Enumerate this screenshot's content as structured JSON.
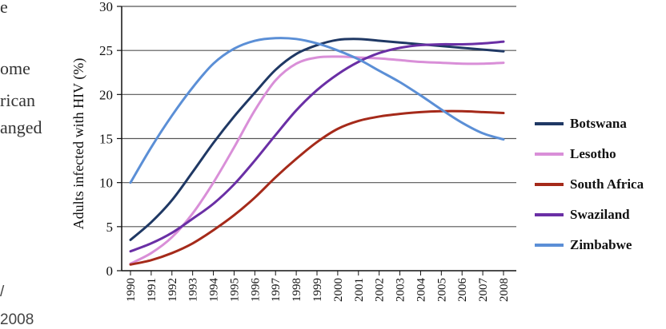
{
  "left_text_fragments": [
    {
      "text": "e",
      "style": "serif"
    },
    {
      "text": "ome",
      "style": "serif"
    },
    {
      "text": "rican",
      "style": "serif"
    },
    {
      "text": "anged",
      "style": "serif"
    },
    {
      "text": "/",
      "style": "sans"
    },
    {
      "text": "2008",
      "style": "sans"
    }
  ],
  "chart_data": {
    "type": "line",
    "ylabel": "Adults infected with HIV (%)",
    "xlabel": "",
    "title": "",
    "ylim": [
      0,
      30
    ],
    "yticks": [
      0,
      5,
      10,
      15,
      20,
      25,
      30
    ],
    "grid": "horizontal",
    "legend_position": "right",
    "x": [
      "1990",
      "1991",
      "1992",
      "1993",
      "1994",
      "1995",
      "1996",
      "1997",
      "1998",
      "1999",
      "2000",
      "2001",
      "2002",
      "2003",
      "2004",
      "2005",
      "2006",
      "2007",
      "2008"
    ],
    "series": [
      {
        "name": "Botswana",
        "color": "#1f3864",
        "values": [
          3.5,
          5.5,
          8,
          11.2,
          14.5,
          17.5,
          20.2,
          22.8,
          24.6,
          25.6,
          26.2,
          26.3,
          26.1,
          25.9,
          25.7,
          25.5,
          25.3,
          25.1,
          24.9
        ]
      },
      {
        "name": "Lesotho",
        "color": "#d98fd8",
        "values": [
          0.8,
          2,
          3.8,
          6.5,
          10,
          14,
          18.2,
          21.6,
          23.5,
          24.2,
          24.3,
          24.2,
          24.1,
          23.9,
          23.7,
          23.6,
          23.5,
          23.5,
          23.6
        ]
      },
      {
        "name": "South Africa",
        "color": "#a52a1a",
        "values": [
          0.7,
          1.2,
          2,
          3.1,
          4.6,
          6.3,
          8.3,
          10.6,
          12.7,
          14.6,
          16.1,
          17,
          17.5,
          17.8,
          18,
          18.1,
          18.1,
          18,
          17.9
        ]
      },
      {
        "name": "Swaziland",
        "color": "#6a2fa5",
        "values": [
          2.2,
          3.1,
          4.3,
          5.9,
          7.6,
          9.8,
          12.5,
          15.4,
          18.2,
          20.5,
          22.3,
          23.7,
          24.7,
          25.3,
          25.6,
          25.7,
          25.7,
          25.8,
          26
        ]
      },
      {
        "name": "Zimbabwe",
        "color": "#5b8fd6",
        "values": [
          10,
          14,
          17.6,
          20.8,
          23.5,
          25.2,
          26.1,
          26.4,
          26.3,
          25.8,
          25,
          24,
          22.7,
          21.4,
          19.9,
          18.3,
          16.8,
          15.6,
          14.9
        ]
      }
    ]
  }
}
